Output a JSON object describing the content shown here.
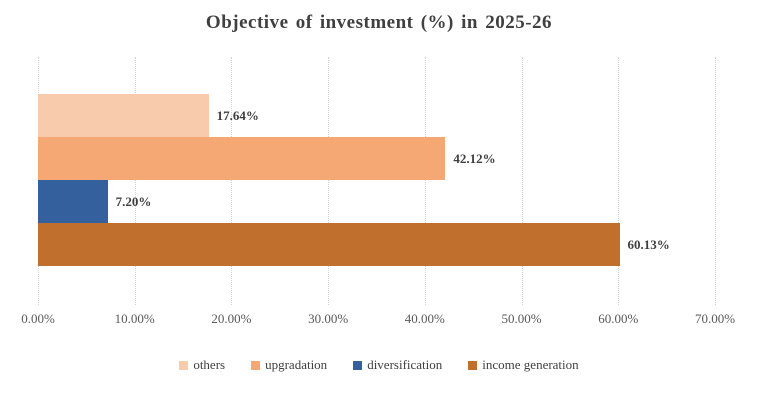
{
  "title": "Objective of investment (%) in 2025-26",
  "chart_data": {
    "type": "bar",
    "orientation": "horizontal",
    "title": "Objective of investment (%) in 2025-26",
    "categories": [
      "others",
      "upgradation",
      "diversification",
      "income generation"
    ],
    "series": [
      {
        "name": "others",
        "value": 17.64,
        "data_label": "17.64%",
        "color": "#F8CBAD"
      },
      {
        "name": "upgradation",
        "value": 42.12,
        "data_label": "42.12%",
        "color": "#F5A874"
      },
      {
        "name": "diversification",
        "value": 7.2,
        "data_label": "7.20%",
        "color": "#35609E"
      },
      {
        "name": "income generation",
        "value": 60.13,
        "data_label": "60.13%",
        "color": "#C0702C"
      }
    ],
    "xlabel": "",
    "ylabel": "",
    "xlim": [
      0,
      70
    ],
    "x_tick_labels": [
      "0.00%",
      "10.00%",
      "20.00%",
      "30.00%",
      "40.00%",
      "50.00%",
      "60.00%",
      "70.00%"
    ],
    "grid": "vertical dotted",
    "legend_position": "bottom",
    "legend_entries": [
      "others",
      "upgradation",
      "diversification",
      "income generation"
    ]
  },
  "style": {
    "title_color": "#404040",
    "axis_label_color": "#595959",
    "data_label_color": "#3F3F3F",
    "legend_text_color": "#404040",
    "gridline_color": "#D2D2D2",
    "background": "#FFFFFF"
  }
}
